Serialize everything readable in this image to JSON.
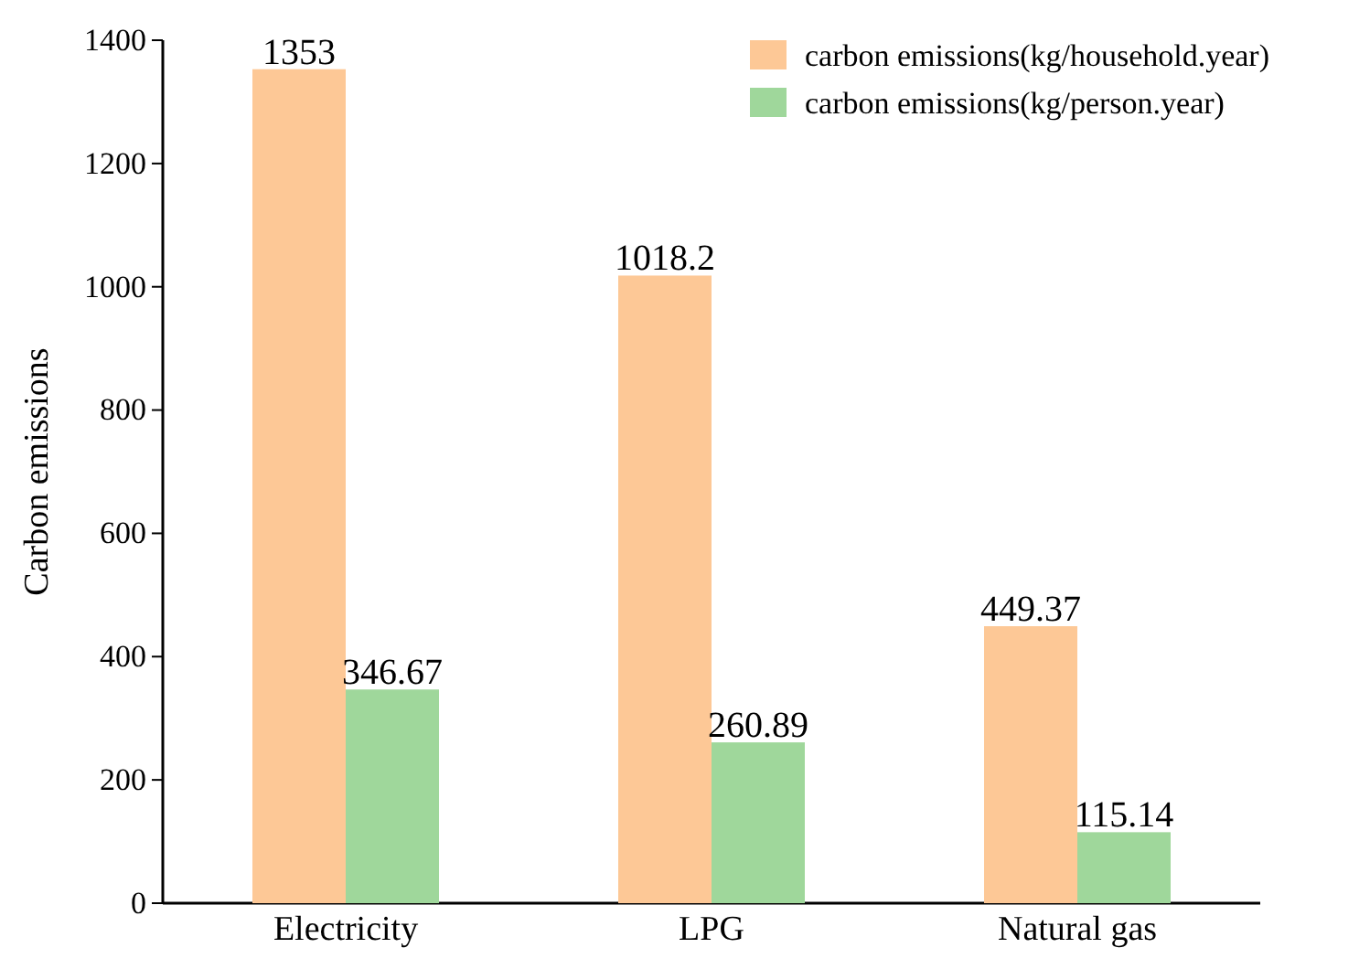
{
  "chart_data": {
    "type": "bar",
    "ylabel": "Carbon emissions",
    "categories": [
      "Electricity",
      "LPG",
      "Natural gas"
    ],
    "series": [
      {
        "name": "carbon emissions(kg/household.year)",
        "color": "#fdc896",
        "values": [
          1353,
          1018.2,
          449.37
        ]
      },
      {
        "name": "carbon emissions(kg/person.year)",
        "color": "#9fd79b",
        "values": [
          346.67,
          260.89,
          115.14
        ]
      }
    ],
    "ylim": [
      0,
      1400
    ],
    "yticks": [
      0,
      200,
      400,
      600,
      800,
      1000,
      1200,
      1400
    ],
    "data_labels": true,
    "legend": "top right",
    "grid": false
  }
}
